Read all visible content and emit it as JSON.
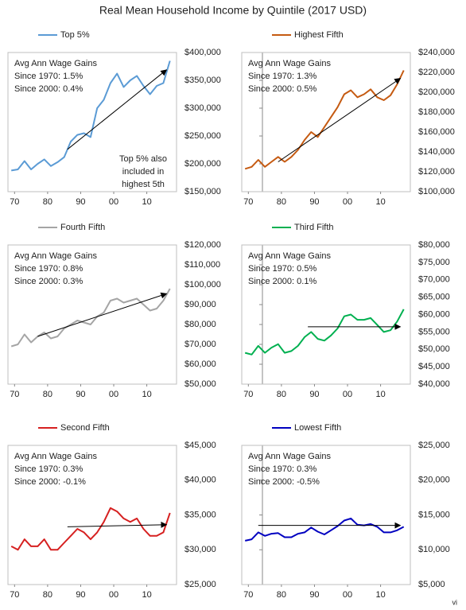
{
  "title": "Real Mean Household Income by Quintile (2017 USD)",
  "footer": "vi",
  "chart_data": [
    {
      "type": "line",
      "x": [
        1969,
        1971,
        1973,
        1975,
        1977,
        1979,
        1981,
        1983,
        1985,
        1987,
        1989,
        1991,
        1993,
        1995,
        1997,
        1999,
        2001,
        2003,
        2005,
        2007,
        2009,
        2011,
        2013,
        2015,
        2017
      ],
      "series": [
        {
          "name": "Top 5%",
          "color": "#5b9bd5",
          "values": [
            188000,
            190000,
            205000,
            190000,
            200000,
            208000,
            196000,
            203000,
            212000,
            240000,
            252000,
            255000,
            248000,
            300000,
            315000,
            345000,
            362000,
            338000,
            350000,
            358000,
            340000,
            325000,
            340000,
            345000,
            385000
          ]
        }
      ],
      "xlim": [
        1968,
        2019
      ],
      "xticks": [
        {
          "value": 1970,
          "label": "70"
        },
        {
          "value": 1980,
          "label": "80"
        },
        {
          "value": 1990,
          "label": "90"
        },
        {
          "value": 2000,
          "label": "00"
        },
        {
          "value": 2010,
          "label": "10"
        }
      ],
      "ylim": [
        150000,
        400000
      ],
      "yticks": [
        {
          "value": 150000,
          "label": "$150,000"
        },
        {
          "value": 200000,
          "label": "$200,000"
        },
        {
          "value": 250000,
          "label": "$250,000"
        },
        {
          "value": 300000,
          "label": "$300,000"
        },
        {
          "value": 350000,
          "label": "$350,000"
        },
        {
          "value": 400000,
          "label": "$400,000"
        }
      ],
      "annotations": [
        "Avg Ann Wage Gains",
        "Since 1970: 1.5%",
        "Since 2000: 0.4%"
      ],
      "note": [
        "Top 5% also",
        "included in",
        "highest 5th"
      ],
      "trend": {
        "x": [
          1986,
          2016
        ],
        "y": [
          226000,
          369000
        ]
      }
    },
    {
      "type": "line",
      "x": [
        1969,
        1971,
        1973,
        1975,
        1977,
        1979,
        1981,
        1983,
        1985,
        1987,
        1989,
        1991,
        1993,
        1995,
        1997,
        1999,
        2001,
        2003,
        2005,
        2007,
        2009,
        2011,
        2013,
        2015,
        2017
      ],
      "series": [
        {
          "name": "Highest Fifth",
          "color": "#c55a11",
          "values": [
            123000,
            125000,
            132000,
            125000,
            130000,
            135000,
            130000,
            135000,
            142000,
            152000,
            160000,
            155000,
            165000,
            175000,
            185000,
            198000,
            202000,
            195000,
            198000,
            203000,
            195000,
            192000,
            197000,
            208000,
            222000
          ]
        }
      ],
      "xlim": [
        1968,
        2019
      ],
      "xticks": [
        {
          "value": 1970,
          "label": "70"
        },
        {
          "value": 1980,
          "label": "80"
        },
        {
          "value": 1990,
          "label": "90"
        },
        {
          "value": 2000,
          "label": "00"
        },
        {
          "value": 2010,
          "label": "10"
        }
      ],
      "ylim": [
        100000,
        240000
      ],
      "yticks": [
        {
          "value": 100000,
          "label": "$100,000"
        },
        {
          "value": 120000,
          "label": "$120,000"
        },
        {
          "value": 140000,
          "label": "$140,000"
        },
        {
          "value": 160000,
          "label": "$160,000"
        },
        {
          "value": 180000,
          "label": "$180,000"
        },
        {
          "value": 200000,
          "label": "$200,000"
        },
        {
          "value": 220000,
          "label": "$220,000"
        },
        {
          "value": 240000,
          "label": "$240,000"
        }
      ],
      "annotations": [
        "Avg Ann Wage Gains",
        "Since 1970: 1.3%",
        "Since 2000: 0.5%"
      ],
      "trend": {
        "x": [
          1979,
          2016
        ],
        "y": [
          130000,
          214000
        ]
      }
    },
    {
      "type": "line",
      "x": [
        1969,
        1971,
        1973,
        1975,
        1977,
        1979,
        1981,
        1983,
        1985,
        1987,
        1989,
        1991,
        1993,
        1995,
        1997,
        1999,
        2001,
        2003,
        2005,
        2007,
        2009,
        2011,
        2013,
        2015,
        2017
      ],
      "series": [
        {
          "name": "Fourth Fifth",
          "color": "#a5a5a5",
          "values": [
            69000,
            70000,
            75000,
            71000,
            74000,
            76000,
            73000,
            74000,
            78000,
            80000,
            82000,
            81000,
            80000,
            84000,
            86000,
            92000,
            93000,
            91000,
            92000,
            93000,
            90000,
            87000,
            88000,
            92000,
            98000
          ]
        }
      ],
      "xlim": [
        1968,
        2019
      ],
      "xticks": [
        {
          "value": 1970,
          "label": "70"
        },
        {
          "value": 1980,
          "label": "80"
        },
        {
          "value": 1990,
          "label": "90"
        },
        {
          "value": 2000,
          "label": "00"
        },
        {
          "value": 2010,
          "label": "10"
        }
      ],
      "ylim": [
        50000,
        120000
      ],
      "yticks": [
        {
          "value": 50000,
          "label": "$50,000"
        },
        {
          "value": 60000,
          "label": "$60,000"
        },
        {
          "value": 70000,
          "label": "$70,000"
        },
        {
          "value": 80000,
          "label": "$80,000"
        },
        {
          "value": 90000,
          "label": "$90,000"
        },
        {
          "value": 100000,
          "label": "$100,000"
        },
        {
          "value": 110000,
          "label": "$110,000"
        },
        {
          "value": 120000,
          "label": "$120,000"
        }
      ],
      "annotations": [
        "Avg Ann Wage Gains",
        "Since 1970: 0.8%",
        "Since 2000: 0.3%"
      ],
      "trend": {
        "x": [
          1977,
          2016
        ],
        "y": [
          74000,
          95500
        ]
      }
    },
    {
      "type": "line",
      "x": [
        1969,
        1971,
        1973,
        1975,
        1977,
        1979,
        1981,
        1983,
        1985,
        1987,
        1989,
        1991,
        1993,
        1995,
        1997,
        1999,
        2001,
        2003,
        2005,
        2007,
        2009,
        2011,
        2013,
        2015,
        2017
      ],
      "series": [
        {
          "name": "Third Fifth",
          "color": "#00b050",
          "values": [
            49000,
            48500,
            51000,
            49000,
            50500,
            51500,
            49000,
            49500,
            51000,
            53500,
            55000,
            53000,
            52500,
            54000,
            56000,
            59500,
            60000,
            58500,
            58500,
            59000,
            57000,
            55000,
            55500,
            58000,
            61500
          ]
        }
      ],
      "xlim": [
        1968,
        2019
      ],
      "xticks": [
        {
          "value": 1970,
          "label": "70"
        },
        {
          "value": 1980,
          "label": "80"
        },
        {
          "value": 1990,
          "label": "90"
        },
        {
          "value": 2000,
          "label": "00"
        },
        {
          "value": 2010,
          "label": "10"
        }
      ],
      "ylim": [
        40000,
        80000
      ],
      "yticks": [
        {
          "value": 40000,
          "label": "$40,000"
        },
        {
          "value": 45000,
          "label": "$45,000"
        },
        {
          "value": 50000,
          "label": "$50,000"
        },
        {
          "value": 55000,
          "label": "$55,000"
        },
        {
          "value": 60000,
          "label": "$60,000"
        },
        {
          "value": 65000,
          "label": "$65,000"
        },
        {
          "value": 70000,
          "label": "$70,000"
        },
        {
          "value": 75000,
          "label": "$75,000"
        },
        {
          "value": 80000,
          "label": "$80,000"
        }
      ],
      "annotations": [
        "Avg Ann Wage Gains",
        "Since 1970: 0.5%",
        "Since 2000: 0.1%"
      ],
      "trend": {
        "x": [
          1988,
          2016
        ],
        "y": [
          56500,
          56500
        ]
      }
    },
    {
      "type": "line",
      "x": [
        1969,
        1971,
        1973,
        1975,
        1977,
        1979,
        1981,
        1983,
        1985,
        1987,
        1989,
        1991,
        1993,
        1995,
        1997,
        1999,
        2001,
        2003,
        2005,
        2007,
        2009,
        2011,
        2013,
        2015,
        2017
      ],
      "series": [
        {
          "name": "Second Fifth",
          "color": "#d62020",
          "values": [
            30500,
            30000,
            31500,
            30500,
            30500,
            31500,
            30000,
            30000,
            31000,
            32000,
            33000,
            32500,
            31500,
            32500,
            34000,
            36000,
            35500,
            34500,
            34000,
            34500,
            33000,
            32000,
            32000,
            32500,
            35300
          ]
        }
      ],
      "xlim": [
        1968,
        2019
      ],
      "xticks": [
        {
          "value": 1970,
          "label": "70"
        },
        {
          "value": 1980,
          "label": "80"
        },
        {
          "value": 1990,
          "label": "90"
        },
        {
          "value": 2000,
          "label": "00"
        },
        {
          "value": 2010,
          "label": "10"
        }
      ],
      "ylim": [
        25000,
        45000
      ],
      "yticks": [
        {
          "value": 25000,
          "label": "$25,000"
        },
        {
          "value": 30000,
          "label": "$30,000"
        },
        {
          "value": 35000,
          "label": "$35,000"
        },
        {
          "value": 40000,
          "label": "$40,000"
        },
        {
          "value": 45000,
          "label": "$45,000"
        }
      ],
      "annotations": [
        "Avg Ann Wage Gains",
        "Since 1970: 0.3%",
        "Since 2000: -0.1%"
      ],
      "trend": {
        "x": [
          1986,
          2016
        ],
        "y": [
          33300,
          33600
        ]
      }
    },
    {
      "type": "line",
      "x": [
        1969,
        1971,
        1973,
        1975,
        1977,
        1979,
        1981,
        1983,
        1985,
        1987,
        1989,
        1991,
        1993,
        1995,
        1997,
        1999,
        2001,
        2003,
        2005,
        2007,
        2009,
        2011,
        2013,
        2015,
        2017
      ],
      "series": [
        {
          "name": "Lowest Fifth",
          "color": "#0000c0",
          "values": [
            11300,
            11500,
            12500,
            12000,
            12300,
            12400,
            11800,
            11800,
            12300,
            12500,
            13200,
            12600,
            12200,
            12800,
            13400,
            14200,
            14500,
            13600,
            13500,
            13700,
            13300,
            12500,
            12500,
            12800,
            13300
          ]
        }
      ],
      "xlim": [
        1968,
        2019
      ],
      "xticks": [
        {
          "value": 1970,
          "label": "70"
        },
        {
          "value": 1980,
          "label": "80"
        },
        {
          "value": 1990,
          "label": "90"
        },
        {
          "value": 2000,
          "label": "00"
        },
        {
          "value": 2010,
          "label": "10"
        }
      ],
      "ylim": [
        5000,
        25000
      ],
      "yticks": [
        {
          "value": 5000,
          "label": "$5,000"
        },
        {
          "value": 10000,
          "label": "$10,000"
        },
        {
          "value": 15000,
          "label": "$15,000"
        },
        {
          "value": 20000,
          "label": "$20,000"
        },
        {
          "value": 25000,
          "label": "$25,000"
        }
      ],
      "annotations": [
        "Avg Ann Wage Gains",
        "Since 1970: 0.3%",
        "Since 2000: -0.5%"
      ],
      "trend": {
        "x": [
          1973,
          2016
        ],
        "y": [
          13500,
          13500
        ]
      }
    }
  ]
}
